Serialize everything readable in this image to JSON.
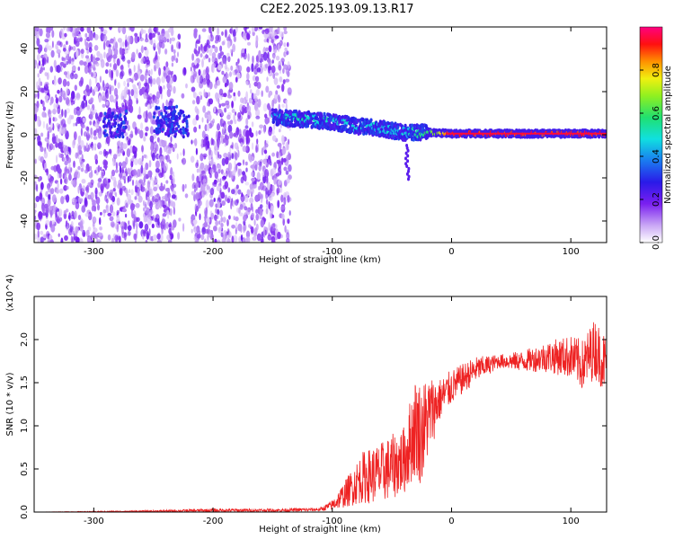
{
  "title": "C2E2.2025.193.09.13.R17",
  "colors": {
    "spectro_low": "#7a1ff0",
    "spectro_high": "#ff0040",
    "snr_line": "#ee2222",
    "axis": "#000000"
  },
  "chart_data": [
    {
      "type": "heatmap",
      "title": "C2E2.2025.193.09.13.R17",
      "xlabel": "Height of straight line (km)",
      "ylabel": "Frequency (Hz)",
      "xlim": [
        -350,
        130
      ],
      "ylim": [
        -50,
        50
      ],
      "xticks": [
        -300,
        -200,
        -100,
        0,
        100
      ],
      "yticks": [
        -40,
        -20,
        0,
        20,
        40
      ],
      "colorbar": {
        "label": "Normalized spectral amplitude",
        "range": [
          0,
          1
        ],
        "ticks": [
          "0.0",
          "0.2",
          "0.4",
          "0.6",
          "0.8"
        ],
        "colormap": "purple-blue-cyan-green-yellow-orange-red-magenta"
      },
      "features": {
        "noise_region_x": [
          -350,
          -150
        ],
        "signal_band": [
          {
            "x": -150,
            "y": 8,
            "amp": 0.45
          },
          {
            "x": -120,
            "y": 7,
            "amp": 0.5
          },
          {
            "x": -100,
            "y": 6,
            "amp": 0.5
          },
          {
            "x": -80,
            "y": 4,
            "amp": 0.45
          },
          {
            "x": -60,
            "y": 3,
            "amp": 0.45
          },
          {
            "x": -40,
            "y": 1,
            "amp": 0.45
          },
          {
            "x": -20,
            "y": 1,
            "amp": 0.6
          },
          {
            "x": 0,
            "y": 0.5,
            "amp": 0.9
          },
          {
            "x": 130,
            "y": 0.5,
            "amp": 0.9
          }
        ]
      }
    },
    {
      "type": "line",
      "xlabel": "Height of straight line (km)",
      "ylabel": "SNR (10 * v/v)",
      "y_multiplier": "(x10^4)",
      "xlim": [
        -350,
        130
      ],
      "ylim": [
        0,
        2.5
      ],
      "xticks": [
        -300,
        -200,
        -100,
        0,
        100
      ],
      "yticks": [
        "0.0",
        "0.5",
        "1.0",
        "1.5",
        "2.0"
      ],
      "series": [
        {
          "x": [
            -350,
            -250,
            -200,
            -150,
            -110,
            -100,
            -90,
            -75,
            -60,
            -40,
            -30,
            -25,
            -20,
            -10,
            0,
            20,
            40,
            60,
            80,
            100,
            110,
            120,
            130
          ],
          "y": [
            0.0,
            0.01,
            0.02,
            0.02,
            0.03,
            0.08,
            0.2,
            0.4,
            0.45,
            0.6,
            1.0,
            0.9,
            1.1,
            1.3,
            1.45,
            1.65,
            1.75,
            1.75,
            1.8,
            1.8,
            1.7,
            1.9,
            1.7
          ],
          "amplitude_noise": [
            0.0,
            0.01,
            0.02,
            0.02,
            0.02,
            0.06,
            0.15,
            0.3,
            0.35,
            0.4,
            0.6,
            0.6,
            0.5,
            0.25,
            0.2,
            0.15,
            0.08,
            0.12,
            0.18,
            0.25,
            0.3,
            0.35,
            0.35
          ]
        }
      ]
    }
  ]
}
